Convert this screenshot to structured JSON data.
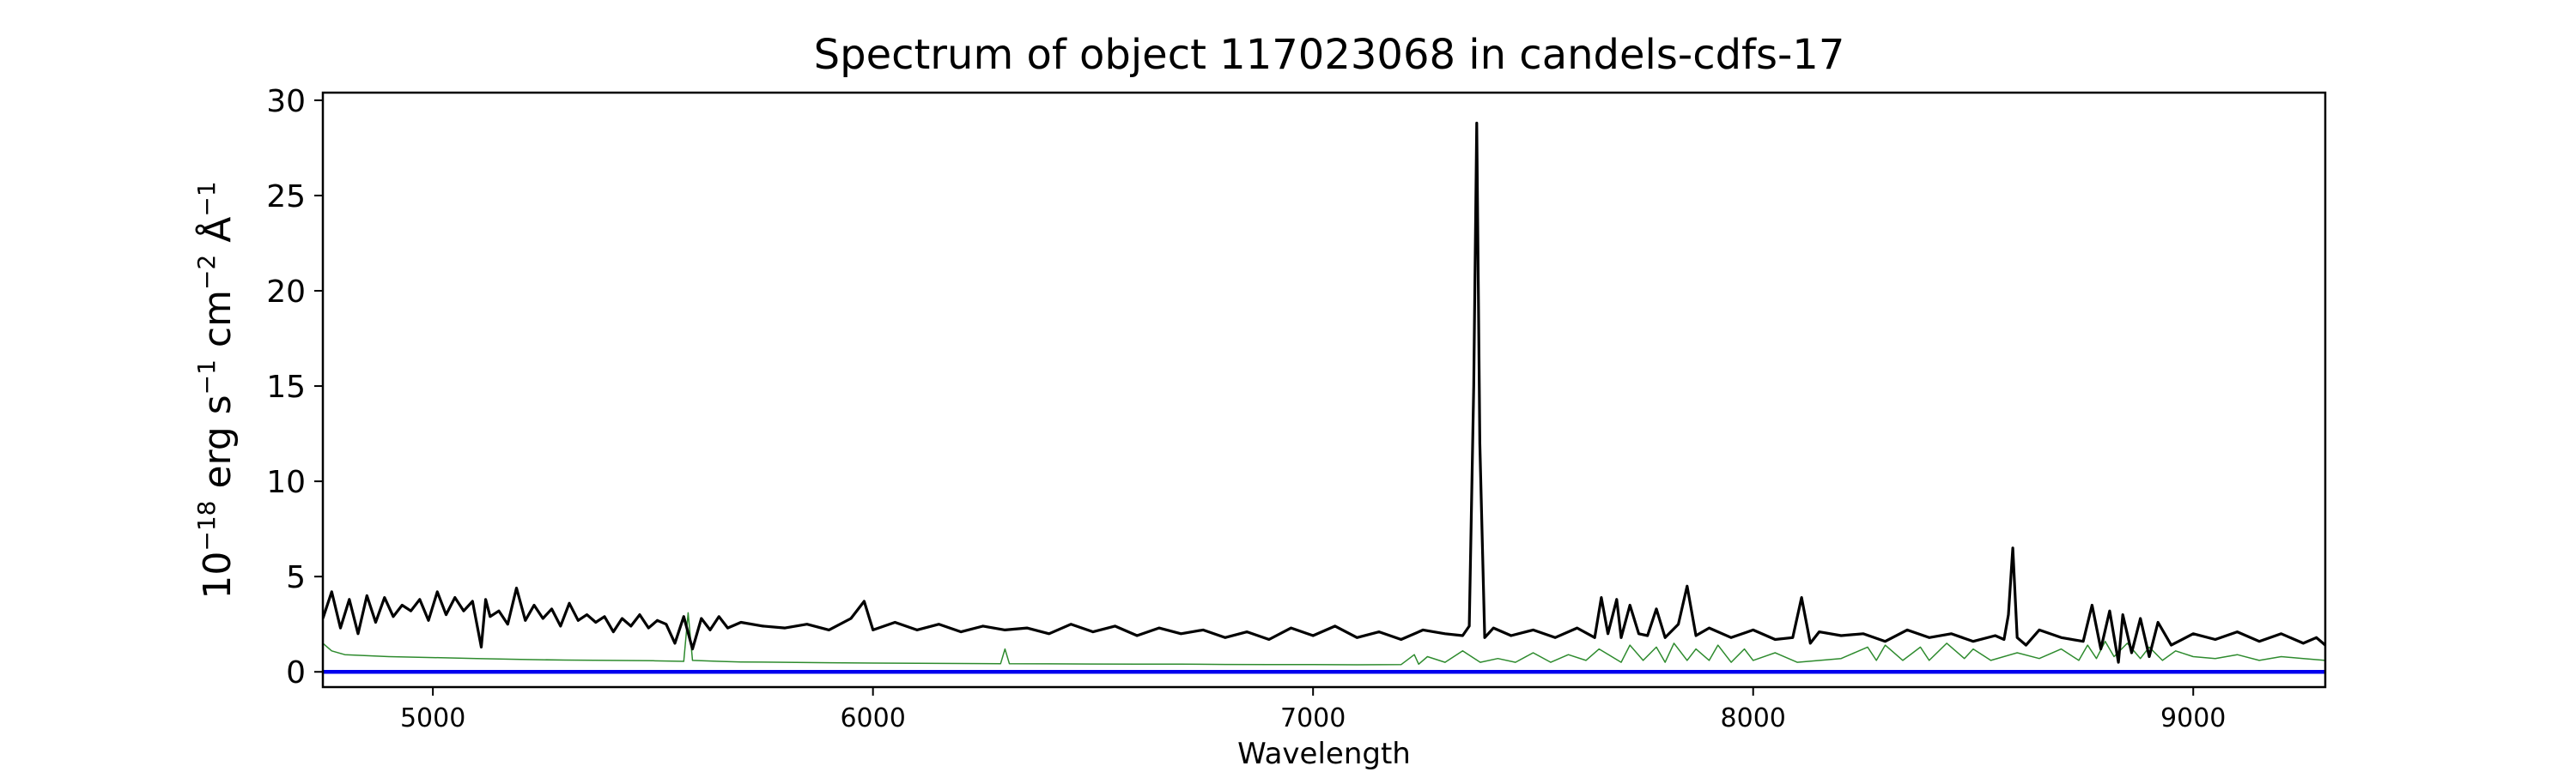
{
  "chart_data": {
    "type": "line",
    "title": "Spectrum of object 117023068 in candels-cdfs-17",
    "xlabel": "Wavelength",
    "ylabel": {
      "base": "10",
      "exp": "−18",
      "unit1": " erg s",
      "exp1": "−1",
      "unit2": " cm",
      "exp2": "−2",
      "unit3": " Å",
      "exp3": "−1"
    },
    "xlim": [
      4750,
      9300
    ],
    "ylim": [
      -0.8,
      30.4
    ],
    "xticks": [
      5000,
      6000,
      7000,
      8000,
      9000
    ],
    "yticks": [
      0,
      5,
      10,
      15,
      20,
      25,
      30
    ],
    "grid": false,
    "series": [
      {
        "role": "flux",
        "color": "#000000",
        "x": [
          4750,
          4770,
          4790,
          4810,
          4830,
          4850,
          4870,
          4890,
          4910,
          4930,
          4950,
          4970,
          4990,
          5010,
          5030,
          5050,
          5070,
          5090,
          5110,
          5120,
          5130,
          5150,
          5170,
          5190,
          5210,
          5230,
          5250,
          5270,
          5290,
          5310,
          5330,
          5350,
          5370,
          5390,
          5410,
          5430,
          5450,
          5470,
          5490,
          5510,
          5530,
          5550,
          5570,
          5590,
          5610,
          5630,
          5650,
          5670,
          5700,
          5750,
          5800,
          5850,
          5900,
          5950,
          5980,
          6000,
          6050,
          6100,
          6150,
          6200,
          6250,
          6300,
          6350,
          6400,
          6450,
          6500,
          6550,
          6600,
          6650,
          6700,
          6750,
          6800,
          6850,
          6900,
          6950,
          7000,
          7050,
          7100,
          7150,
          7200,
          7250,
          7300,
          7340,
          7355,
          7365,
          7372,
          7379,
          7390,
          7410,
          7450,
          7500,
          7550,
          7600,
          7640,
          7655,
          7670,
          7690,
          7700,
          7720,
          7740,
          7760,
          7780,
          7800,
          7830,
          7850,
          7870,
          7900,
          7950,
          8000,
          8050,
          8090,
          8110,
          8130,
          8150,
          8200,
          8250,
          8300,
          8350,
          8400,
          8450,
          8500,
          8550,
          8570,
          8580,
          8590,
          8600,
          8620,
          8650,
          8700,
          8750,
          8770,
          8790,
          8810,
          8830,
          8840,
          8860,
          8880,
          8900,
          8920,
          8950,
          9000,
          9050,
          9100,
          9150,
          9200,
          9250,
          9280,
          9300
        ],
        "y": [
          2.8,
          4.2,
          2.3,
          3.8,
          2.0,
          4.0,
          2.6,
          3.9,
          2.9,
          3.5,
          3.2,
          3.8,
          2.7,
          4.2,
          3.0,
          3.9,
          3.2,
          3.7,
          1.3,
          3.8,
          2.9,
          3.2,
          2.5,
          4.4,
          2.7,
          3.5,
          2.8,
          3.3,
          2.4,
          3.6,
          2.7,
          3.0,
          2.6,
          2.9,
          2.1,
          2.8,
          2.4,
          3.0,
          2.3,
          2.7,
          2.5,
          1.5,
          2.9,
          1.2,
          2.8,
          2.2,
          2.9,
          2.3,
          2.6,
          2.4,
          2.3,
          2.5,
          2.2,
          2.8,
          3.7,
          2.2,
          2.6,
          2.2,
          2.5,
          2.1,
          2.4,
          2.2,
          2.3,
          2.0,
          2.5,
          2.1,
          2.4,
          1.9,
          2.3,
          2.0,
          2.2,
          1.8,
          2.1,
          1.7,
          2.3,
          1.9,
          2.4,
          1.8,
          2.1,
          1.7,
          2.2,
          2.0,
          1.9,
          2.4,
          15.0,
          28.8,
          12.0,
          1.8,
          2.3,
          1.9,
          2.2,
          1.8,
          2.3,
          1.8,
          3.9,
          2.0,
          3.8,
          1.8,
          3.5,
          2.0,
          1.9,
          3.3,
          1.8,
          2.5,
          4.5,
          1.9,
          2.3,
          1.8,
          2.2,
          1.7,
          1.8,
          3.9,
          1.5,
          2.1,
          1.9,
          2.0,
          1.6,
          2.2,
          1.8,
          2.0,
          1.6,
          1.9,
          1.7,
          3.0,
          6.5,
          1.8,
          1.4,
          2.2,
          1.8,
          1.6,
          3.5,
          1.2,
          3.2,
          0.5,
          3.0,
          1.0,
          2.8,
          0.8,
          2.6,
          1.4,
          2.0,
          1.7,
          2.1,
          1.6,
          2.0,
          1.5,
          1.8,
          1.4
        ]
      },
      {
        "role": "noise",
        "color": "#2e8b2e",
        "x": [
          4750,
          4770,
          4800,
          4850,
          4900,
          5000,
          5100,
          5200,
          5300,
          5400,
          5500,
          5570,
          5580,
          5590,
          5650,
          5700,
          5800,
          5900,
          6000,
          6100,
          6200,
          6290,
          6300,
          6310,
          6400,
          6500,
          6600,
          6700,
          6800,
          6900,
          7000,
          7100,
          7200,
          7230,
          7240,
          7260,
          7300,
          7340,
          7380,
          7420,
          7460,
          7500,
          7540,
          7580,
          7620,
          7650,
          7700,
          7720,
          7750,
          7780,
          7800,
          7820,
          7850,
          7870,
          7900,
          7920,
          7950,
          7980,
          8000,
          8050,
          8100,
          8200,
          8260,
          8280,
          8300,
          8340,
          8380,
          8400,
          8440,
          8480,
          8500,
          8540,
          8600,
          8650,
          8700,
          8740,
          8760,
          8780,
          8800,
          8820,
          8850,
          8880,
          8900,
          8930,
          8960,
          9000,
          9050,
          9100,
          9150,
          9200,
          9250,
          9300
        ],
        "y": [
          1.5,
          1.1,
          0.9,
          0.85,
          0.8,
          0.75,
          0.7,
          0.65,
          0.62,
          0.6,
          0.58,
          0.55,
          3.1,
          0.6,
          0.55,
          0.52,
          0.5,
          0.48,
          0.46,
          0.45,
          0.44,
          0.43,
          1.2,
          0.43,
          0.42,
          0.41,
          0.4,
          0.4,
          0.39,
          0.38,
          0.38,
          0.37,
          0.38,
          0.9,
          0.4,
          0.8,
          0.5,
          1.1,
          0.5,
          0.7,
          0.5,
          1.0,
          0.5,
          0.9,
          0.6,
          1.2,
          0.5,
          1.4,
          0.6,
          1.3,
          0.5,
          1.5,
          0.6,
          1.2,
          0.6,
          1.4,
          0.5,
          1.2,
          0.6,
          1.0,
          0.5,
          0.7,
          1.3,
          0.6,
          1.4,
          0.6,
          1.3,
          0.6,
          1.5,
          0.7,
          1.2,
          0.6,
          1.0,
          0.7,
          1.2,
          0.6,
          1.4,
          0.7,
          1.6,
          0.8,
          1.5,
          0.7,
          1.3,
          0.6,
          1.1,
          0.8,
          0.7,
          0.9,
          0.6,
          0.8,
          0.7,
          0.6
        ]
      },
      {
        "role": "baseline",
        "color": "#0000ee",
        "x": [
          4750,
          9300
        ],
        "y": [
          0,
          0
        ]
      }
    ]
  }
}
